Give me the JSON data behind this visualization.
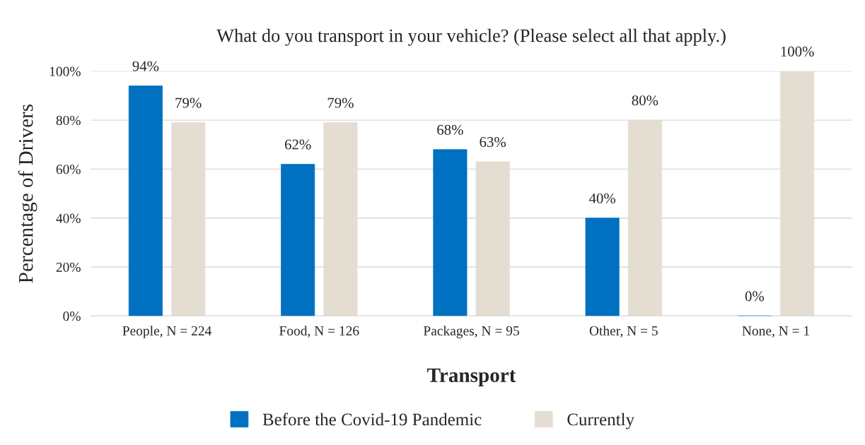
{
  "chart_data": {
    "type": "bar",
    "title": "What do you transport in your vehicle? (Please select all that apply.)",
    "xlabel": "Transport",
    "ylabel": "Percentage of Drivers",
    "categories": [
      "People, N = 224",
      "Food, N = 126",
      "Packages, N = 95",
      "Other, N = 5",
      "None, N = 1"
    ],
    "series": [
      {
        "name": "Before the Covid-19 Pandemic",
        "color": "#0070c0",
        "values": [
          94,
          62,
          68,
          40,
          0
        ],
        "value_labels": [
          "94%",
          "62%",
          "68%",
          "40%",
          "0%"
        ]
      },
      {
        "name": "Currently",
        "color": "#e3ddd2",
        "values": [
          79,
          79,
          63,
          80,
          100
        ],
        "value_labels": [
          "79%",
          "79%",
          "63%",
          "80%",
          "100%"
        ]
      }
    ],
    "ylim": [
      0,
      100
    ],
    "yticks": [
      {
        "value": 0,
        "label": "0%"
      },
      {
        "value": 20,
        "label": "20%"
      },
      {
        "value": 40,
        "label": "40%"
      },
      {
        "value": 60,
        "label": "60%"
      },
      {
        "value": 80,
        "label": "80%"
      },
      {
        "value": 100,
        "label": "100%"
      }
    ],
    "grid": "y",
    "legend": "bottom"
  }
}
